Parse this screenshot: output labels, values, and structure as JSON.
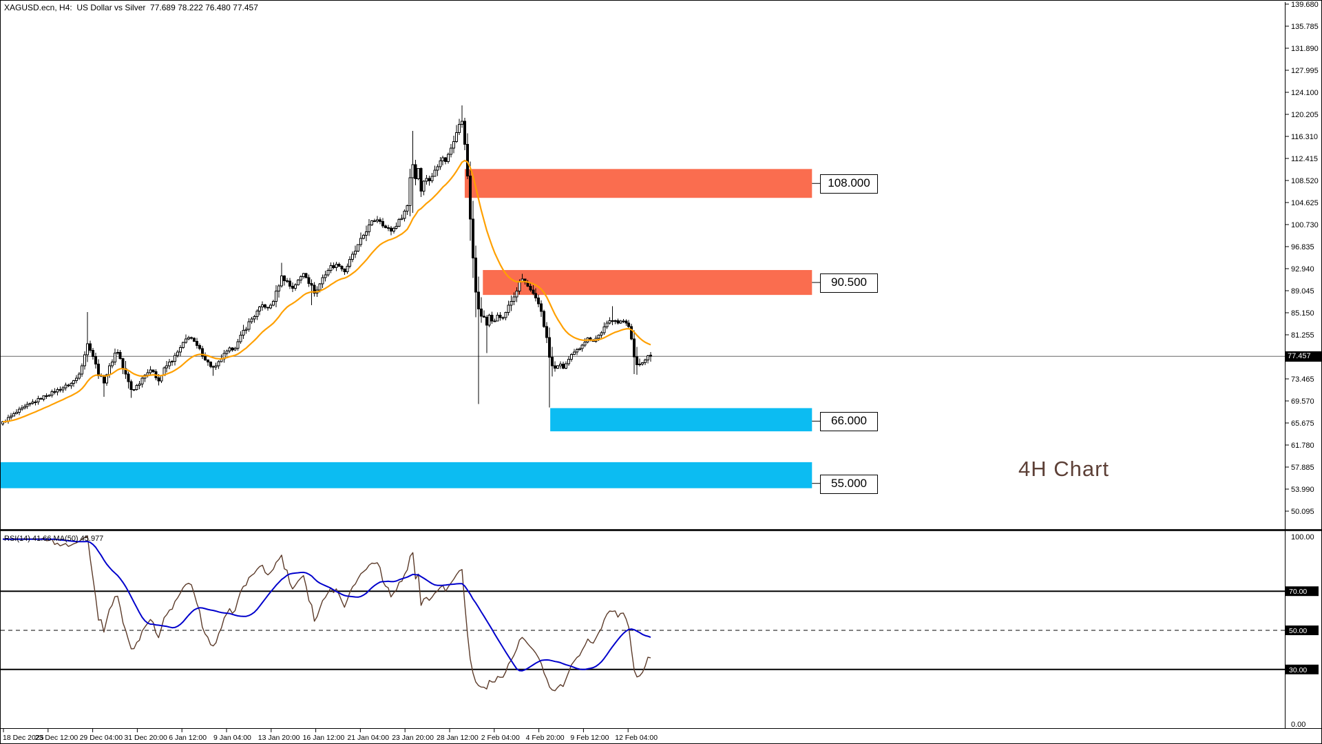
{
  "header": {
    "title": "XAGUSD.ecn, H4:  US Dollar vs Silver  77.689 78.222 76.480 77.457"
  },
  "annotation": {
    "label": "4H Chart",
    "color": "#5d4037"
  },
  "chart_data": {
    "type": "candlestick_with_rsi",
    "symbol": "XAGUSD.ecn",
    "timeframe": "H4",
    "description": "US Dollar vs Silver",
    "ohlc": {
      "open": 77.689,
      "high": 78.222,
      "low": 76.48,
      "close": 77.457
    },
    "bars": 238,
    "colors": {
      "background": "#ffffff",
      "candle_up_fill": "#ffffff",
      "candle_down_fill": "#000000",
      "candle_outline": "#000000",
      "ma_line": "#ffa000",
      "supply_zone": "#fa6d4f",
      "demand_zone": "#0cbcf2",
      "current_price_line": "#666666",
      "rsi_line": "#5b3a29",
      "rsi_ma_line": "#0000cc"
    },
    "price_axis": {
      "ticks": [
        "139.680",
        "135.785",
        "131.890",
        "127.995",
        "124.100",
        "120.205",
        "116.310",
        "112.415",
        "108.520",
        "104.625",
        "100.730",
        "96.835",
        "92.940",
        "89.045",
        "85.150",
        "81.255",
        "77.360",
        "73.465",
        "69.570",
        "65.675",
        "61.780",
        "57.885",
        "53.990",
        "50.095"
      ],
      "tick_step": 3.895,
      "current_price": 77.457,
      "current_price_label": "77.457"
    },
    "time_axis": {
      "labels": [
        "18 Dec 2025",
        "23 Dec 12:00",
        "29 Dec 04:00",
        "31 Dec 20:00",
        "6 Jan 12:00",
        "9 Jan 04:00",
        "13 Jan 20:00",
        "16 Jan 12:00",
        "21 Jan 04:00",
        "23 Jan 20:00",
        "28 Jan 12:00",
        "2 Feb 04:00",
        "4 Feb 20:00",
        "9 Feb 12:00",
        "12 Feb 04:00"
      ]
    },
    "zones": [
      {
        "label": "108.000",
        "price": 108.0,
        "type": "supply",
        "price_top": 110.55,
        "price_bottom": 105.45,
        "start_t": 0.713,
        "end_t": 1.249
      },
      {
        "label": "90.500",
        "price": 90.5,
        "type": "supply",
        "price_top": 92.7,
        "price_bottom": 88.3,
        "start_t": 0.741,
        "end_t": 1.249
      },
      {
        "label": "66.000",
        "price": 66.0,
        "type": "demand",
        "price_top": 68.3,
        "price_bottom": 64.2,
        "start_t": 0.845,
        "end_t": 1.249
      },
      {
        "label": "55.000",
        "price": 55.0,
        "type": "demand",
        "price_top": 58.75,
        "price_bottom": 54.15,
        "start_t": -0.004,
        "end_t": 1.249
      }
    ],
    "moving_average": {
      "name": "MA",
      "period": 20,
      "style": "EMA"
    },
    "price_path_anchors": [
      [
        0.0,
        65.8
      ],
      [
        0.012,
        66.8
      ],
      [
        0.03,
        68.2
      ],
      [
        0.048,
        69.4
      ],
      [
        0.068,
        70.6
      ],
      [
        0.09,
        71.8
      ],
      [
        0.105,
        72.6
      ],
      [
        0.116,
        73.8
      ],
      [
        0.124,
        76.8
      ],
      [
        0.13,
        79.6
      ],
      [
        0.136,
        78.8
      ],
      [
        0.145,
        75.2
      ],
      [
        0.155,
        72.8
      ],
      [
        0.163,
        75.0
      ],
      [
        0.172,
        77.9
      ],
      [
        0.178,
        78.4
      ],
      [
        0.186,
        75.2
      ],
      [
        0.199,
        71.4
      ],
      [
        0.21,
        72.6
      ],
      [
        0.22,
        74.6
      ],
      [
        0.232,
        74.9
      ],
      [
        0.24,
        73.0
      ],
      [
        0.25,
        75.4
      ],
      [
        0.262,
        76.8
      ],
      [
        0.272,
        78.4
      ],
      [
        0.282,
        80.3
      ],
      [
        0.288,
        81.2
      ],
      [
        0.296,
        79.8
      ],
      [
        0.306,
        78.2
      ],
      [
        0.317,
        76.2
      ],
      [
        0.327,
        75.2
      ],
      [
        0.338,
        77.2
      ],
      [
        0.35,
        78.6
      ],
      [
        0.36,
        79.2
      ],
      [
        0.371,
        81.8
      ],
      [
        0.382,
        83.8
      ],
      [
        0.392,
        85.2
      ],
      [
        0.402,
        86.6
      ],
      [
        0.41,
        85.8
      ],
      [
        0.42,
        87.8
      ],
      [
        0.429,
        91.5
      ],
      [
        0.437,
        91.0
      ],
      [
        0.446,
        89.4
      ],
      [
        0.456,
        90.8
      ],
      [
        0.465,
        92.4
      ],
      [
        0.475,
        90.0
      ],
      [
        0.483,
        88.6
      ],
      [
        0.494,
        91.4
      ],
      [
        0.505,
        93.2
      ],
      [
        0.518,
        93.7
      ],
      [
        0.527,
        92.4
      ],
      [
        0.54,
        95.2
      ],
      [
        0.55,
        97.2
      ],
      [
        0.56,
        99.6
      ],
      [
        0.572,
        101.4
      ],
      [
        0.58,
        101.8
      ],
      [
        0.59,
        100.2
      ],
      [
        0.6,
        99.6
      ],
      [
        0.61,
        101.0
      ],
      [
        0.62,
        103.0
      ],
      [
        0.626,
        104.5
      ],
      [
        0.631,
        113.5
      ],
      [
        0.636,
        108.5
      ],
      [
        0.641,
        111.0
      ],
      [
        0.646,
        106.8
      ],
      [
        0.652,
        109.2
      ],
      [
        0.66,
        108.4
      ],
      [
        0.668,
        110.8
      ],
      [
        0.676,
        112.6
      ],
      [
        0.684,
        112.0
      ],
      [
        0.691,
        114.0
      ],
      [
        0.698,
        116.5
      ],
      [
        0.703,
        118.5
      ],
      [
        0.707,
        119.6
      ],
      [
        0.711,
        117.8
      ],
      [
        0.715,
        112.5
      ],
      [
        0.719,
        106.0
      ],
      [
        0.723,
        99.5
      ],
      [
        0.727,
        94.0
      ],
      [
        0.731,
        87.0
      ],
      [
        0.736,
        83.8
      ],
      [
        0.741,
        86.0
      ],
      [
        0.746,
        82.2
      ],
      [
        0.751,
        84.8
      ],
      [
        0.757,
        83.0
      ],
      [
        0.764,
        85.0
      ],
      [
        0.772,
        84.2
      ],
      [
        0.78,
        86.2
      ],
      [
        0.788,
        87.8
      ],
      [
        0.795,
        89.6
      ],
      [
        0.801,
        91.2
      ],
      [
        0.808,
        90.2
      ],
      [
        0.815,
        88.8
      ],
      [
        0.822,
        87.6
      ],
      [
        0.83,
        86.2
      ],
      [
        0.838,
        81.6
      ],
      [
        0.845,
        76.4
      ],
      [
        0.851,
        74.8
      ],
      [
        0.858,
        76.2
      ],
      [
        0.865,
        75.4
      ],
      [
        0.872,
        76.6
      ],
      [
        0.88,
        77.8
      ],
      [
        0.888,
        78.6
      ],
      [
        0.896,
        80.0
      ],
      [
        0.904,
        80.6
      ],
      [
        0.912,
        80.2
      ],
      [
        0.92,
        81.2
      ],
      [
        0.928,
        82.4
      ],
      [
        0.936,
        83.6
      ],
      [
        0.944,
        84.2
      ],
      [
        0.95,
        83.2
      ],
      [
        0.957,
        83.8
      ],
      [
        0.963,
        83.4
      ],
      [
        0.968,
        82.6
      ],
      [
        0.972,
        78.8
      ],
      [
        0.976,
        75.8
      ],
      [
        0.98,
        76.4
      ],
      [
        0.985,
        75.9
      ],
      [
        0.99,
        76.8
      ],
      [
        0.995,
        77.6
      ],
      [
        1.0,
        77.457
      ]
    ],
    "wick_events": [
      {
        "t": 0.131,
        "high": 85.3
      },
      {
        "t": 0.157,
        "low": 70.3
      },
      {
        "t": 0.199,
        "low": 70.1
      },
      {
        "t": 0.327,
        "low": 74.0
      },
      {
        "t": 0.429,
        "high": 94.0
      },
      {
        "t": 0.477,
        "low": 86.5
      },
      {
        "t": 0.631,
        "high": 117.3,
        "low": 102.8
      },
      {
        "t": 0.707,
        "high": 121.8
      },
      {
        "t": 0.736,
        "low": 69.0
      },
      {
        "t": 0.746,
        "low": 78.0
      },
      {
        "t": 0.845,
        "low": 68.4
      },
      {
        "t": 0.94,
        "high": 86.3
      },
      {
        "t": 0.976,
        "low": 74.3
      }
    ],
    "rsi": {
      "label": "RSI(14) 41.66 MA(50) 45.977",
      "period": 14,
      "value": 41.66,
      "ma_period": 50,
      "ma_value": 45.977,
      "axis_top_label": "100.00",
      "axis_bottom_label": "0.00",
      "level_tags": [
        {
          "label": "70.00",
          "value": 70,
          "style": "solid"
        },
        {
          "label": "50.00",
          "value": 50,
          "style": "dashed"
        },
        {
          "label": "30.00",
          "value": 30,
          "style": "solid"
        }
      ]
    }
  }
}
